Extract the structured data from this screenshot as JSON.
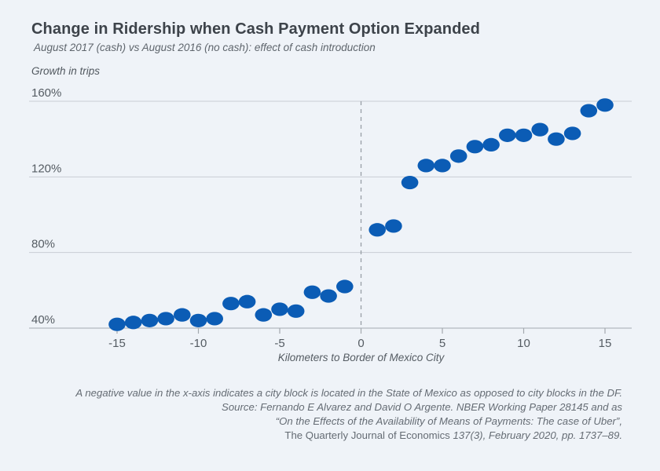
{
  "header": {
    "title": "Change in Ridership when Cash Payment Option Expanded",
    "subtitle": "August 2017 (cash) vs August 2016 (no cash): effect of cash introduction"
  },
  "chart_data": {
    "type": "scatter",
    "title": "Change in Ridership when Cash Payment Option Expanded",
    "subtitle": "August 2017 (cash) vs August 2016 (no cash): effect of cash introduction",
    "ylabel": "Growth in trips",
    "xlabel": "Kilometers to Border of Mexico City",
    "ylim": [
      40,
      160
    ],
    "xlim": [
      -17,
      17
    ],
    "grid": "horizontal",
    "legend": "none",
    "marker_color": "#0b5cb5",
    "reference_line_x": 0,
    "yticks": [
      {
        "value": 160,
        "label": "160%"
      },
      {
        "value": 120,
        "label": "120%"
      },
      {
        "value": 80,
        "label": "80%"
      },
      {
        "value": 40,
        "label": "40%"
      }
    ],
    "xticks": [
      {
        "value": -15,
        "label": "-15"
      },
      {
        "value": -10,
        "label": "-10"
      },
      {
        "value": -5,
        "label": "-5"
      },
      {
        "value": 0,
        "label": "0"
      },
      {
        "value": 5,
        "label": "5"
      },
      {
        "value": 10,
        "label": "10"
      },
      {
        "value": 15,
        "label": "15"
      }
    ],
    "points": [
      {
        "x": -15,
        "y": 42
      },
      {
        "x": -14,
        "y": 43
      },
      {
        "x": -13,
        "y": 44
      },
      {
        "x": -12,
        "y": 45
      },
      {
        "x": -11,
        "y": 47
      },
      {
        "x": -10,
        "y": 44
      },
      {
        "x": -9,
        "y": 45
      },
      {
        "x": -8,
        "y": 53
      },
      {
        "x": -7,
        "y": 54
      },
      {
        "x": -6,
        "y": 47
      },
      {
        "x": -5,
        "y": 50
      },
      {
        "x": -4,
        "y": 49
      },
      {
        "x": -3,
        "y": 59
      },
      {
        "x": -2,
        "y": 57
      },
      {
        "x": -1,
        "y": 62
      },
      {
        "x": 1,
        "y": 92
      },
      {
        "x": 2,
        "y": 94
      },
      {
        "x": 3,
        "y": 117
      },
      {
        "x": 4,
        "y": 126
      },
      {
        "x": 5,
        "y": 126
      },
      {
        "x": 6,
        "y": 131
      },
      {
        "x": 7,
        "y": 136
      },
      {
        "x": 8,
        "y": 137
      },
      {
        "x": 9,
        "y": 142
      },
      {
        "x": 10,
        "y": 142
      },
      {
        "x": 11,
        "y": 145
      },
      {
        "x": 12,
        "y": 140
      },
      {
        "x": 13,
        "y": 143
      },
      {
        "x": 14,
        "y": 155
      },
      {
        "x": 15,
        "y": 158
      }
    ],
    "colors": {
      "background": "#eff3f8",
      "gridline": "#c9ced4",
      "axis": "#a3a9af",
      "dashed_reference": "#979ea5",
      "tick_label": "#555c63"
    }
  },
  "footnote": {
    "line1": "A negative value in the x-axis indicates a city block is located in the State of Mexico as opposed to city blocks in the DF.",
    "line2": "Source: Fernando E Alvarez and David O Argente. NBER Working Paper 28145 and as",
    "line3": "“On the Effects of the Availability of Means of Payments: The case of Uber”,",
    "line4_roman": "The Quarterly Journal of Economics ",
    "line4_italic": "137(3), February 2020, pp. 1737–89."
  }
}
